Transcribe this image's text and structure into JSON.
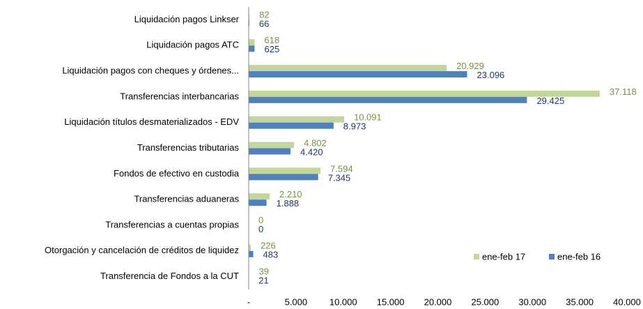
{
  "chart_data": {
    "type": "bar",
    "orientation": "horizontal",
    "categories": [
      "Liquidación pagos Linkser",
      "Liquidación pagos ATC",
      "Liquidación pagos con cheques y órdenes...",
      "Transferencias interbancarias",
      "Liquidación títulos desmaterializados - EDV",
      "Transferencias tributarias",
      "Fondos de efectivo en custodia",
      "Transferencias aduaneras",
      "Transferencias a cuentas propias",
      "Otorgación y cancelación de créditos de liquidez",
      "Transferencia de Fondos a la CUT"
    ],
    "series": [
      {
        "name": "ene-feb 17",
        "color": "#c3d69b",
        "values": [
          82,
          618,
          20929,
          37118,
          10091,
          4802,
          7594,
          2210,
          0,
          226,
          39
        ],
        "value_labels": [
          "82",
          "618",
          "20.929",
          "37.118",
          "10.091",
          "4.802",
          "7.594",
          "2.210",
          "0",
          "226",
          "39"
        ]
      },
      {
        "name": "ene-feb 16",
        "color": "#4f81bd",
        "values": [
          66,
          625,
          23096,
          29425,
          8973,
          4420,
          7345,
          1888,
          0,
          483,
          21
        ],
        "value_labels": [
          "66",
          "625",
          "23.096",
          "29.425",
          "8.973",
          "4.420",
          "7.345",
          "1.888",
          "0",
          "483",
          "21"
        ]
      }
    ],
    "xlim": [
      0,
      40000
    ],
    "xticks": [
      {
        "value": 0,
        "label": "-"
      },
      {
        "value": 5000,
        "label": "5.000"
      },
      {
        "value": 10000,
        "label": "10.000"
      },
      {
        "value": 15000,
        "label": "15.000"
      },
      {
        "value": 20000,
        "label": "20.000"
      },
      {
        "value": 25000,
        "label": "25.000"
      },
      {
        "value": 30000,
        "label": "30.000"
      },
      {
        "value": 35000,
        "label": "35.000"
      },
      {
        "value": 40000,
        "label": "40.000"
      }
    ],
    "grid": false,
    "legend": "lower right"
  }
}
